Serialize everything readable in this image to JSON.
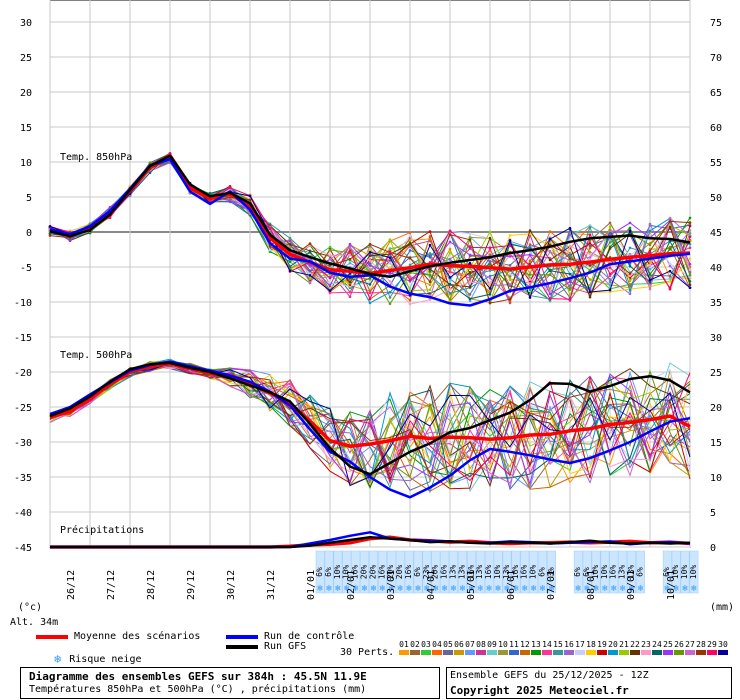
{
  "chart_data": {
    "type": "line",
    "title": "Diagramme des ensembles GEFS sur 384h : 45.5N 11.9E",
    "subtitle": "Températures 850hPa et 500hPa (°C) , précipitations (mm)",
    "ensemble_run": "Ensemble GEFS du 25/12/2025 - 12Z",
    "copyright": "Copyright 2025 Meteociel.fr",
    "altitude": "Alt. 34m",
    "left_axis_unit": "(°c)",
    "right_axis_unit": "(mm)",
    "left_ticks": [
      "30",
      "25",
      "20",
      "15",
      "10",
      "5",
      "0",
      "-5",
      "-10",
      "-15",
      "-20",
      "-25",
      "-30",
      "-35",
      "-40",
      "-45"
    ],
    "right_ticks": [
      "75",
      "70",
      "65",
      "60",
      "55",
      "50",
      "45",
      "40",
      "35",
      "30",
      "25",
      "20",
      "15",
      "10",
      "5",
      "0"
    ],
    "ylim": [
      -45,
      30
    ],
    "x_range_hours": [
      0,
      384
    ],
    "dates": [
      "26/12",
      "27/12",
      "28/12",
      "29/12",
      "30/12",
      "31/12",
      "01/01",
      "02/01",
      "03/01",
      "04/01",
      "05/01",
      "06/01",
      "07/01",
      "08/01",
      "09/01",
      "10/01"
    ],
    "panel_labels": {
      "t850": "Temp. 850hPa",
      "t500": "Temp. 500hPa",
      "precip": "Précipitations"
    },
    "series": [
      {
        "name": "Moyenne des scénarios",
        "color": "#ff0000",
        "t850": [
          0.2,
          -0.5,
          0.5,
          2.8,
          5.9,
          9.2,
          10.6,
          6.3,
          4.8,
          5.4,
          3.8,
          -0.8,
          -3.2,
          -4.3,
          -5.4,
          -5.6,
          -5.9,
          -5.5,
          -5.1,
          -4.6,
          -4.8,
          -4.9,
          -5.1,
          -5.3,
          -5.0,
          -4.7,
          -4.6,
          -4.3,
          -3.9,
          -3.6,
          -3.4,
          -3.1,
          -3.0
        ],
        "t500": [
          -26.5,
          -25.6,
          -23.8,
          -21.8,
          -20.0,
          -19.2,
          -18.8,
          -19.5,
          -20.2,
          -20.8,
          -21.7,
          -23.0,
          -24.5,
          -27.0,
          -29.8,
          -30.6,
          -30.3,
          -29.8,
          -29.2,
          -29.5,
          -29.3,
          -29.4,
          -29.6,
          -29.4,
          -29.0,
          -28.9,
          -28.4,
          -28.1,
          -27.5,
          -27.2,
          -26.8,
          -26.3,
          -27.8
        ],
        "precip": [
          0,
          0,
          0,
          0,
          0,
          0,
          0,
          0,
          0,
          0,
          0,
          0,
          0.1,
          0.3,
          0.4,
          0.6,
          1.2,
          1.4,
          1.0,
          0.9,
          0.7,
          0.8,
          0.6,
          0.5,
          0.6,
          0.6,
          0.7,
          0.6,
          0.7,
          0.8,
          0.6,
          0.7,
          0.5
        ]
      },
      {
        "name": "Run de contrôle",
        "color": "#0000ff",
        "t850": [
          0.4,
          -0.3,
          0.8,
          3.0,
          6.2,
          9.5,
          10.4,
          5.8,
          4.0,
          5.8,
          3.2,
          -1.6,
          -3.8,
          -4.2,
          -5.8,
          -6.4,
          -6.2,
          -7.8,
          -8.8,
          -9.3,
          -10.2,
          -10.5,
          -9.6,
          -8.4,
          -7.9,
          -7.3,
          -6.6,
          -5.8,
          -4.6,
          -4.2,
          -3.8,
          -3.4,
          -3.1
        ],
        "t500": [
          -26.0,
          -25.0,
          -23.2,
          -21.5,
          -19.8,
          -19.0,
          -18.5,
          -19.2,
          -19.8,
          -20.5,
          -21.4,
          -22.8,
          -24.8,
          -28.2,
          -31.4,
          -32.8,
          -35.0,
          -36.8,
          -37.9,
          -36.5,
          -34.8,
          -32.6,
          -31.0,
          -31.4,
          -31.9,
          -32.5,
          -33.0,
          -32.3,
          -31.2,
          -30.0,
          -28.5,
          -27.1,
          -26.6
        ],
        "precip": [
          0,
          0,
          0,
          0,
          0,
          0,
          0,
          0,
          0,
          0,
          0,
          0,
          0,
          0.5,
          1.0,
          1.6,
          2.1,
          1.2,
          1.0,
          0.9,
          0.8,
          0.6,
          0.6,
          0.8,
          0.7,
          0.5,
          0.6,
          0.7,
          0.8,
          0.4,
          0.6,
          0.7,
          0.5
        ]
      },
      {
        "name": "Run GFS",
        "color": "#000000",
        "t850": [
          0.1,
          -0.6,
          0.3,
          2.5,
          6.0,
          9.4,
          10.9,
          6.8,
          5.1,
          5.6,
          4.1,
          -0.4,
          -2.6,
          -3.6,
          -4.5,
          -5.2,
          -6.0,
          -6.4,
          -5.6,
          -4.9,
          -4.4,
          -4.0,
          -3.6,
          -3.0,
          -2.6,
          -2.1,
          -1.4,
          -0.9,
          -0.7,
          -0.5,
          -0.9,
          -1.0,
          -1.5
        ],
        "t500": [
          -26.3,
          -25.2,
          -23.5,
          -21.4,
          -19.6,
          -18.9,
          -18.7,
          -19.4,
          -20.0,
          -20.9,
          -21.9,
          -22.9,
          -24.2,
          -27.4,
          -30.9,
          -33.5,
          -34.6,
          -33.0,
          -31.4,
          -30.2,
          -28.6,
          -28.0,
          -26.9,
          -25.8,
          -24.0,
          -21.6,
          -21.7,
          -22.8,
          -22.0,
          -21.0,
          -20.6,
          -21.2,
          -22.9
        ],
        "precip": [
          0,
          0,
          0,
          0,
          0,
          0,
          0,
          0,
          0,
          0,
          0,
          0,
          0,
          0.2,
          0.6,
          1.0,
          1.4,
          1.2,
          1.0,
          0.7,
          0.8,
          0.6,
          0.5,
          0.7,
          0.6,
          0.5,
          0.7,
          0.9,
          0.6,
          0.5,
          0.6,
          0.5,
          0.6
        ]
      }
    ],
    "snow_risk_blocks": [
      {
        "start_index": 0,
        "labels": [
          "6%",
          "6%",
          "10%",
          "10%",
          "16%",
          "20%",
          "20%",
          "16%",
          "20%",
          "20%",
          "16%",
          "6%",
          "23%",
          "20%",
          "16%",
          "13%",
          "13%",
          "16%",
          "13%",
          "16%",
          "10%",
          "13%",
          "16%",
          "16%",
          "10%",
          "6%",
          "3%"
        ]
      },
      {
        "start_index": 29,
        "labels": [
          "6%",
          "6%",
          "10%",
          "10%",
          "16%",
          "13%",
          "13%",
          "6%"
        ]
      },
      {
        "start_index": 39,
        "labels": [
          "6%",
          "10%",
          "10%",
          "10%"
        ]
      }
    ],
    "perturbations": {
      "label": "30 Perts.",
      "ids": [
        "01",
        "02",
        "03",
        "04",
        "05",
        "06",
        "07",
        "08",
        "09",
        "10",
        "11",
        "12",
        "13",
        "14",
        "15",
        "16",
        "17",
        "18",
        "19",
        "20",
        "21",
        "22",
        "23",
        "24",
        "25",
        "26",
        "27",
        "28",
        "29",
        "30"
      ],
      "colors": [
        "#ff9900",
        "#996633",
        "#33cc33",
        "#ff6600",
        "#666699",
        "#cc9900",
        "#6699ff",
        "#cc3399",
        "#66cccc",
        "#999933",
        "#3366cc",
        "#cc6600",
        "#009900",
        "#ff3399",
        "#339999",
        "#9966cc",
        "#ccccff",
        "#ffcc00",
        "#cc0000",
        "#0099cc",
        "#99cc00",
        "#663300",
        "#ff99cc",
        "#006666",
        "#9933ff",
        "#669900",
        "#cc66cc",
        "#993300",
        "#ff0066",
        "#000099"
      ]
    },
    "legend": {
      "mean": "Moyenne des scénarios",
      "control": "Run de contrôle",
      "gfs": "Run GFS",
      "snow": "Risque neige"
    },
    "grid": true
  }
}
